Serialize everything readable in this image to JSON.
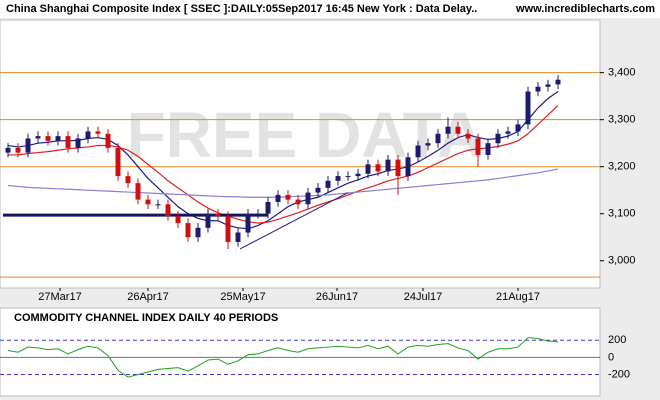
{
  "chart_data": {
    "type": "candlestick",
    "title": "China Shanghai Composite Index [ SSEC ]:DAILY:05Sep2017 16:45 New York : Data Delay..",
    "source": "www.incrediblecharts.com",
    "watermark": "FREE DATA",
    "open": [
      3230,
      3240,
      3230,
      3260,
      3265,
      3255,
      3265,
      3240,
      3260,
      3275,
      3270,
      3240,
      3180,
      3165,
      3130,
      3120,
      3120,
      3095,
      3080,
      3050,
      3070,
      3100,
      3095,
      3040,
      3060,
      3100,
      3100,
      3125,
      3140,
      3130,
      3120,
      3145,
      3155,
      3170,
      3180,
      3180,
      3185,
      3205,
      3190,
      3215,
      3180,
      3220,
      3245,
      3250,
      3270,
      3285,
      3270,
      3260,
      3225,
      3250,
      3270,
      3275,
      3290,
      3360,
      3370,
      3375
    ],
    "high": [
      3250,
      3250,
      3270,
      3275,
      3275,
      3275,
      3275,
      3270,
      3285,
      3285,
      3280,
      3250,
      3190,
      3175,
      3140,
      3130,
      3130,
      3105,
      3090,
      3080,
      3110,
      3110,
      3105,
      3070,
      3110,
      3110,
      3135,
      3150,
      3150,
      3140,
      3155,
      3165,
      3180,
      3190,
      3190,
      3195,
      3215,
      3215,
      3225,
      3225,
      3230,
      3255,
      3260,
      3280,
      3305,
      3295,
      3280,
      3270,
      3260,
      3280,
      3285,
      3300,
      3370,
      3380,
      3385,
      3395
    ],
    "low": [
      3220,
      3220,
      3220,
      3250,
      3245,
      3245,
      3230,
      3230,
      3250,
      3260,
      3230,
      3170,
      3155,
      3120,
      3110,
      3110,
      3085,
      3070,
      3040,
      3040,
      3060,
      3085,
      3025,
      3030,
      3050,
      3090,
      3090,
      3115,
      3120,
      3110,
      3110,
      3135,
      3145,
      3160,
      3170,
      3170,
      3175,
      3180,
      3180,
      3140,
      3170,
      3210,
      3235,
      3240,
      3260,
      3260,
      3250,
      3200,
      3215,
      3240,
      3260,
      3265,
      3280,
      3350,
      3360,
      3365
    ],
    "close": [
      3240,
      3230,
      3260,
      3265,
      3255,
      3265,
      3240,
      3260,
      3275,
      3270,
      3240,
      3180,
      3165,
      3130,
      3120,
      3120,
      3095,
      3080,
      3050,
      3070,
      3100,
      3095,
      3040,
      3060,
      3100,
      3100,
      3125,
      3140,
      3130,
      3120,
      3145,
      3155,
      3170,
      3180,
      3180,
      3185,
      3205,
      3190,
      3215,
      3180,
      3220,
      3245,
      3250,
      3270,
      3285,
      3270,
      3260,
      3225,
      3250,
      3270,
      3275,
      3290,
      3360,
      3370,
      3375,
      3385
    ],
    "up_color": "#1c1c6e",
    "down_color": "#d01010",
    "overlays": [
      {
        "color": "#1c1c8c",
        "values": [
          3245,
          3242,
          3245,
          3250,
          3252,
          3255,
          3255,
          3256,
          3260,
          3262,
          3258,
          3245,
          3225,
          3200,
          3175,
          3155,
          3135,
          3115,
          3100,
          3090,
          3085,
          3085,
          3075,
          3070,
          3068,
          3075,
          3085,
          3100,
          3115,
          3125,
          3130,
          3135,
          3145,
          3155,
          3165,
          3172,
          3180,
          3185,
          3192,
          3195,
          3200,
          3210,
          3222,
          3235,
          3250,
          3262,
          3268,
          3262,
          3258,
          3260,
          3265,
          3275,
          3300,
          3325,
          3345,
          3360
        ]
      },
      {
        "color": "#e02020",
        "values": [
          3225,
          3225,
          3228,
          3230,
          3232,
          3235,
          3238,
          3240,
          3242,
          3245,
          3245,
          3242,
          3235,
          3222,
          3205,
          3188,
          3170,
          3155,
          3140,
          3125,
          3112,
          3102,
          3095,
          3088,
          3083,
          3080,
          3082,
          3088,
          3095,
          3102,
          3110,
          3118,
          3125,
          3132,
          3140,
          3148,
          3155,
          3162,
          3170,
          3175,
          3180,
          3188,
          3198,
          3208,
          3218,
          3228,
          3235,
          3238,
          3240,
          3243,
          3248,
          3255,
          3270,
          3290,
          3310,
          3330
        ]
      },
      {
        "color": "#8a7fd0",
        "values": [
          3160,
          3158,
          3156,
          3155,
          3154,
          3153,
          3152,
          3151,
          3150,
          3149,
          3148,
          3147,
          3146,
          3145,
          3144,
          3143,
          3142,
          3141,
          3140,
          3139,
          3138,
          3137,
          3136,
          3136,
          3135,
          3135,
          3135,
          3135,
          3136,
          3137,
          3138,
          3139,
          3140,
          3142,
          3144,
          3146,
          3148,
          3150,
          3152,
          3154,
          3156,
          3158,
          3160,
          3162,
          3164,
          3166,
          3168,
          3170,
          3172,
          3175,
          3178,
          3181,
          3184,
          3187,
          3191,
          3195
        ]
      }
    ],
    "levels": [
      3400,
      3300,
      3200,
      2965
    ],
    "level_color": "#e08a2a",
    "support": {
      "x": [
        -0.5,
        26
      ],
      "y": [
        3097,
        3097
      ],
      "color": "#14145a"
    },
    "trendline": {
      "x": [
        23.2,
        34
      ],
      "y": [
        3025,
        3145
      ],
      "color": "#1c1c8c"
    },
    "xlim": [
      -0.8,
      59.2
    ],
    "ylim": [
      2942,
      3512
    ],
    "yticks": [
      {
        "value": 3000,
        "label": "3,000"
      },
      {
        "value": 3100,
        "label": "3,100"
      },
      {
        "value": 3200,
        "label": "3,200"
      },
      {
        "value": 3300,
        "label": "3,300"
      },
      {
        "value": 3400,
        "label": "3,400"
      }
    ],
    "xticks": [
      {
        "value": 5.2,
        "label": "27Mar17"
      },
      {
        "value": 14,
        "label": "26Apr17"
      },
      {
        "value": 23.5,
        "label": "25May17"
      },
      {
        "value": 32.9,
        "label": "26Jun17"
      },
      {
        "value": 41.5,
        "label": "24Jul17"
      },
      {
        "value": 51,
        "label": "21Aug17"
      }
    ],
    "indicator": {
      "title": "COMMODITY CHANNEL INDEX DAILY 40 PERIODS",
      "color": "#20a020",
      "values": [
        80,
        60,
        120,
        110,
        90,
        100,
        40,
        90,
        130,
        110,
        20,
        -150,
        -230,
        -200,
        -170,
        -140,
        -130,
        -120,
        -160,
        -100,
        -30,
        -20,
        -80,
        -40,
        30,
        40,
        80,
        110,
        80,
        60,
        100,
        110,
        120,
        130,
        120,
        110,
        140,
        100,
        130,
        40,
        120,
        140,
        130,
        150,
        160,
        110,
        80,
        -20,
        60,
        100,
        100,
        120,
        230,
        220,
        190,
        180
      ],
      "ylim": [
        -450,
        575
      ],
      "yticks": [
        200,
        0,
        -200
      ]
    }
  }
}
